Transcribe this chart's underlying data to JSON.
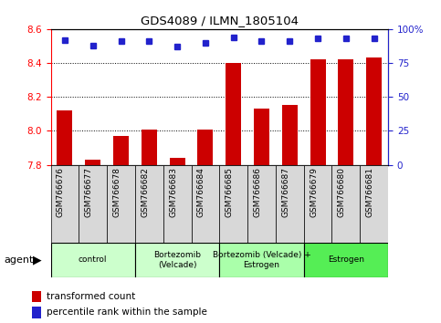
{
  "title": "GDS4089 / ILMN_1805104",
  "samples": [
    "GSM766676",
    "GSM766677",
    "GSM766678",
    "GSM766682",
    "GSM766683",
    "GSM766684",
    "GSM766685",
    "GSM766686",
    "GSM766687",
    "GSM766679",
    "GSM766680",
    "GSM766681"
  ],
  "bar_values": [
    8.12,
    7.83,
    7.97,
    8.01,
    7.84,
    8.01,
    8.4,
    8.13,
    8.15,
    8.42,
    8.42,
    8.43
  ],
  "percentile_values": [
    92,
    88,
    91,
    91,
    87,
    90,
    94,
    91,
    91,
    93,
    93,
    93
  ],
  "bar_color": "#cc0000",
  "dot_color": "#2222cc",
  "ylim_left": [
    7.8,
    8.6
  ],
  "ylim_right": [
    0,
    100
  ],
  "yticks_left": [
    7.8,
    8.0,
    8.2,
    8.4,
    8.6
  ],
  "yticks_right": [
    0,
    25,
    50,
    75,
    100
  ],
  "ytick_labels_right": [
    "0",
    "25",
    "50",
    "75",
    "100%"
  ],
  "groups": [
    {
      "label": "control",
      "start": 0,
      "end": 3,
      "color": "#ccffcc"
    },
    {
      "label": "Bortezomib\n(Velcade)",
      "start": 3,
      "end": 6,
      "color": "#ccffcc"
    },
    {
      "label": "Bortezomib (Velcade) +\nEstrogen",
      "start": 6,
      "end": 9,
      "color": "#aaffaa"
    },
    {
      "label": "Estrogen",
      "start": 9,
      "end": 12,
      "color": "#55ee55"
    }
  ],
  "agent_label": "agent",
  "legend_bar_label": "transformed count",
  "legend_dot_label": "percentile rank within the sample",
  "col_bg_color": "#d8d8d8",
  "plot_bg_color": "#ffffff"
}
